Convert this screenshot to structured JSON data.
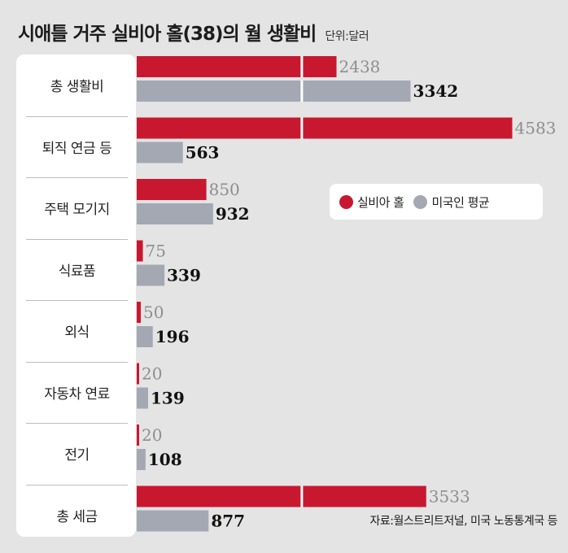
{
  "header": {
    "title": "시애틀 거주 실비아 홀(38)의 월 생활비",
    "unit": "단위:달러"
  },
  "legend": {
    "items": [
      {
        "label": "실비아 홀",
        "color": "#c8182f"
      },
      {
        "label": "미국인 평균",
        "color": "#a3a8b3"
      }
    ]
  },
  "source": "자료:월스트리트저널, 미국 노동통계국 등",
  "chart_data": {
    "type": "bar",
    "orientation": "horizontal",
    "categories": [
      "총 생활비",
      "퇴직 연금 등",
      "주택 모기지",
      "식료품",
      "외식",
      "자동차 연료",
      "전기",
      "총 세금"
    ],
    "series": [
      {
        "name": "실비아 홀",
        "values": [
          2438,
          4583,
          850,
          75,
          50,
          20,
          20,
          3533
        ],
        "color": "#c8182f"
      },
      {
        "name": "미국인 평균",
        "values": [
          3342,
          563,
          932,
          339,
          196,
          139,
          108,
          877
        ],
        "color": "#a3a8b3"
      }
    ],
    "title": "시애틀 거주 실비아 홀(38)의 월 생활비",
    "xlabel": "",
    "ylabel": "",
    "xlim": [
      0,
      4600
    ],
    "legend_position": "right",
    "grid": false
  }
}
